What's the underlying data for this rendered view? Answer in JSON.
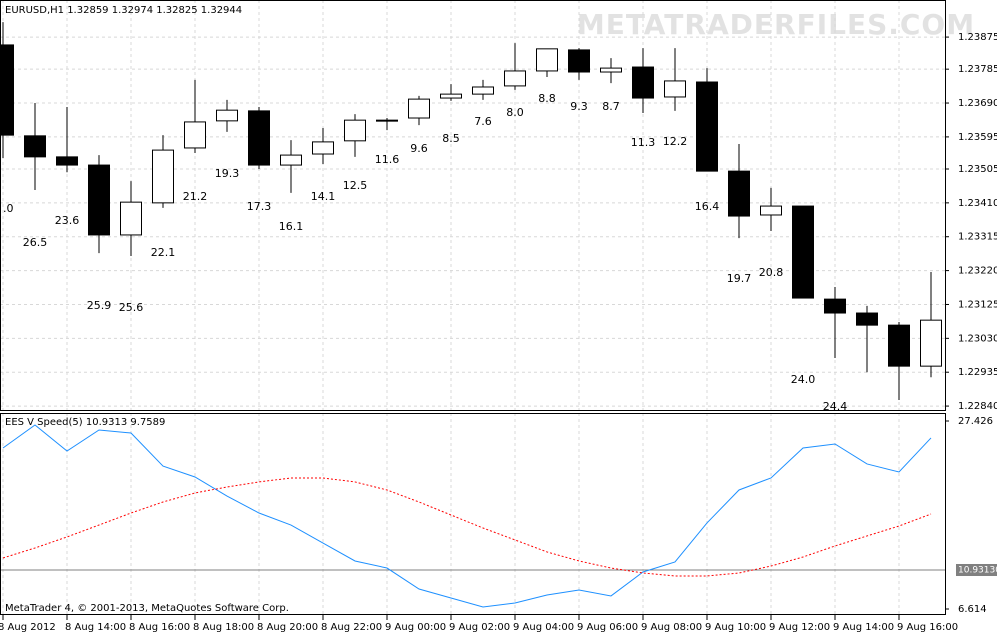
{
  "chart_data": [
    {
      "type": "candlestick",
      "title": "EURUSD,H1 1.32859 1.32974 1.32825 1.32944",
      "watermark": "METATRADERFILES.COM",
      "categories": [
        "8 Aug 2012",
        null,
        "8 Aug 14:00",
        null,
        "8 Aug 16:00",
        null,
        "8 Aug 18:00",
        null,
        "8 Aug 20:00",
        null,
        "8 Aug 22:00",
        null,
        "9 Aug 00:00",
        null,
        "9 Aug 02:00",
        null,
        "9 Aug 04:00",
        null,
        "9 Aug 06:00",
        null,
        "9 Aug 08:00",
        null,
        "9 Aug 10:00",
        null,
        "9 Aug 12:00",
        null,
        "9 Aug 14:00",
        null,
        "9 Aug 16:00",
        null
      ],
      "open": [
        1.23853,
        1.23598,
        1.23539,
        1.23516,
        1.2332,
        1.2341,
        1.23564,
        1.2364,
        1.23668,
        1.23516,
        1.23547,
        1.23584,
        1.2364,
        1.23648,
        1.23704,
        1.23715,
        1.23738,
        1.2378,
        1.23839,
        1.23777,
        1.23791,
        1.23707,
        1.23749,
        1.23499,
        1.23376,
        1.23401,
        1.2314,
        1.23101,
        1.23067,
        1.22952
      ],
      "high": [
        1.23917,
        1.2369,
        1.23679,
        1.23544,
        1.23471,
        1.236,
        1.23755,
        1.23699,
        1.23679,
        1.23586,
        1.2362,
        1.23659,
        1.23648,
        1.2371,
        1.23743,
        1.23755,
        1.23858,
        1.23842,
        1.23844,
        1.23816,
        1.23844,
        1.23844,
        1.23788,
        1.23575,
        1.23452,
        1.23401,
        1.23174,
        1.23121,
        1.23076,
        1.23216
      ],
      "low": [
        1.23536,
        1.23446,
        1.23496,
        1.23269,
        1.23261,
        1.23396,
        1.2355,
        1.23609,
        1.23505,
        1.23438,
        1.23519,
        1.23539,
        1.23614,
        1.23628,
        1.23696,
        1.23699,
        1.23727,
        1.23763,
        1.23755,
        1.23746,
        1.23662,
        1.23668,
        1.23499,
        1.23311,
        1.23331,
        1.23143,
        1.22975,
        1.22935,
        1.22857,
        1.22921
      ],
      "close": [
        1.236,
        1.23539,
        1.23516,
        1.2332,
        1.23412,
        1.23558,
        1.23637,
        1.2367,
        1.23516,
        1.23544,
        1.23581,
        1.23642,
        1.23642,
        1.23701,
        1.23715,
        1.23735,
        1.2378,
        1.23842,
        1.23777,
        1.23788,
        1.23704,
        1.23752,
        1.23499,
        1.23373,
        1.23401,
        1.23143,
        1.23101,
        1.23067,
        1.22952,
        1.23081
      ],
      "candle_labels": [
        ".0",
        "26.5",
        "23.6",
        "25.9",
        "25.6",
        "22.1",
        "21.2",
        "19.3",
        "17.3",
        "16.1",
        "14.1",
        "12.5",
        "11.6",
        "9.6",
        "8.5",
        "7.6",
        "8.0",
        "8.8",
        "9.3",
        "8.7",
        "11.3",
        "12.2",
        "16.4",
        "19.7",
        "20.8",
        "24.0",
        "24.4"
      ],
      "ylim": [
        1.22829,
        1.23979
      ],
      "yticks": [
        1.23875,
        1.23785,
        {
          "value": 1.2369,
          "label": "1.23690"
        },
        1.23595,
        1.23505,
        {
          "value": 1.2341,
          "label": "1.23410"
        },
        1.23315,
        {
          "value": 1.2322,
          "label": "1.23220"
        },
        1.23125,
        {
          "value": 1.2303,
          "label": "1.23030"
        },
        1.22935,
        {
          "value": 1.2284,
          "label": "1.22840"
        }
      ],
      "up_color": "#ffffff",
      "down_color": "#000000",
      "grid": true
    },
    {
      "type": "line",
      "title": "EES V Speed(5) 10.9313 9.7589",
      "footer": "MetaTrader 4, © 2001-2013, MetaQuotes Software Corp.",
      "series": [
        {
          "color": "#1e90ff",
          "dashed": false,
          "values": [
            24.44,
            26.98,
            24.1,
            26.43,
            26.1,
            22.44,
            21.23,
            19.12,
            17.24,
            15.91,
            13.92,
            11.93,
            11.15,
            8.83,
            7.83,
            6.84,
            7.28,
            8.16,
            8.72,
            8.06,
            10.71,
            11.82,
            16.14,
            19.79,
            21.12,
            24.44,
            24.88,
            22.67,
            21.78,
            25.55
          ]
        },
        {
          "color": "#ff0000",
          "dashed": true,
          "values": [
            12.26,
            13.37,
            14.59,
            15.91,
            17.24,
            18.46,
            19.46,
            20.12,
            20.68,
            21.12,
            21.12,
            20.68,
            19.79,
            18.46,
            17.02,
            15.58,
            14.26,
            12.93,
            11.93,
            11.15,
            10.6,
            10.27,
            10.27,
            10.6,
            11.37,
            12.37,
            13.59,
            14.7,
            15.8,
            17.13
          ]
        }
      ],
      "ylim": [
        6.614,
        27.426
      ],
      "yticks": [
        27.426,
        6.614
      ],
      "level": {
        "value": 10.9313,
        "label": "10.93130"
      }
    }
  ]
}
